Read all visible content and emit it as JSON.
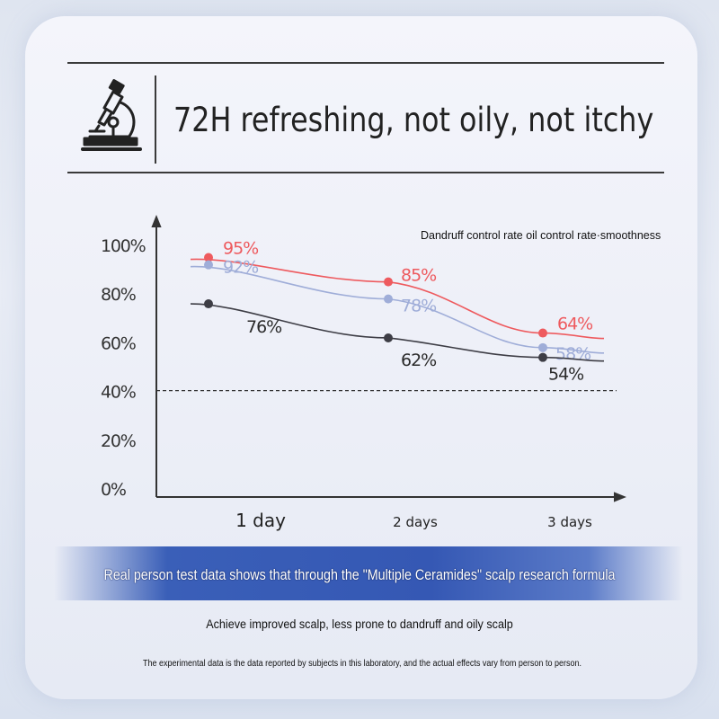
{
  "header": {
    "title": "72H refreshing, not oily, not itchy",
    "icon": "microscope-icon"
  },
  "chart_data": {
    "type": "line",
    "title": "",
    "legend_text": "Dandruff control rate oil control rate·smoothness",
    "legend_placement": "top-right",
    "categories": [
      "1 day",
      "2 days",
      "3 days"
    ],
    "ylim": [
      0,
      100
    ],
    "yticks": [
      0,
      20,
      40,
      60,
      80,
      100
    ],
    "ytick_labels": [
      "0%",
      "20%",
      "40%",
      "60%",
      "80%",
      "100%"
    ],
    "reference_line": 40,
    "grid": false,
    "series": [
      {
        "values": [
          95,
          85,
          64
        ],
        "color": "#ee5a5e",
        "labels": [
          "95%",
          "85%",
          "64%"
        ]
      },
      {
        "values": [
          92,
          78,
          58
        ],
        "color": "#9fadd8",
        "labels": [
          "92%",
          "78%",
          "58%"
        ]
      },
      {
        "values": [
          76,
          62,
          54
        ],
        "color": "#3d3d45",
        "labels": [
          "76%",
          "62%",
          "54%"
        ]
      }
    ]
  },
  "banner": {
    "text": "Real person test data shows that through the \"Multiple Ceramides\" scalp research formula"
  },
  "subtitle": "Achieve improved scalp, less prone to dandruff and oily scalp",
  "footnote": "The experimental data is the data reported by subjects in this laboratory, and the actual effects vary from person to person."
}
